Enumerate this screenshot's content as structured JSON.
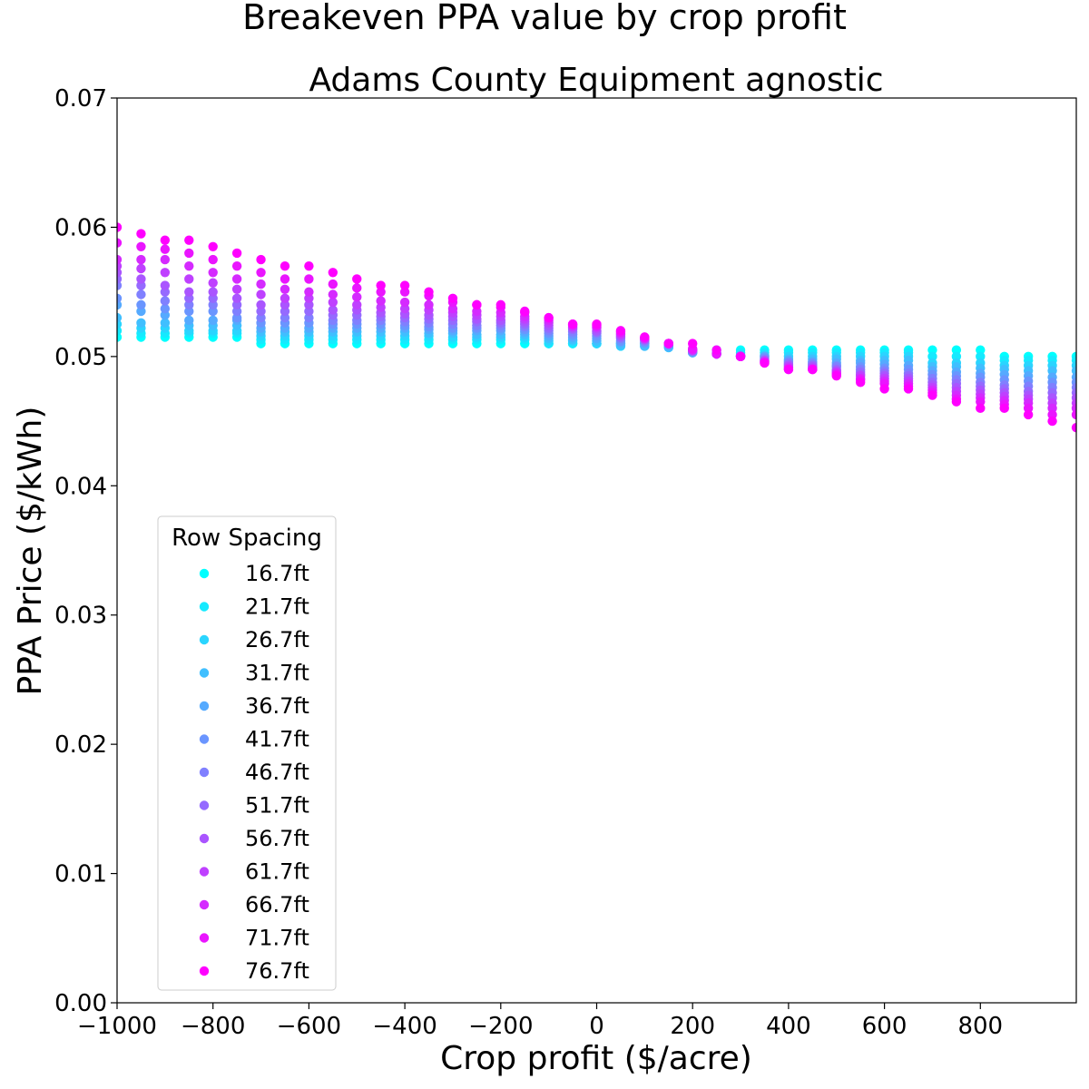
{
  "chart_data": {
    "type": "scatter",
    "suptitle": "Breakeven PPA value by crop profit",
    "title": "Adams County Equipment agnostic",
    "xlabel": "Crop profit ($/acre)",
    "ylabel": "PPA Price ($/kWh)",
    "xlim": [
      -1000,
      1000
    ],
    "ylim": [
      0,
      0.07
    ],
    "xticks": [
      -1000,
      -800,
      -600,
      -400,
      -200,
      0,
      200,
      400,
      600,
      800
    ],
    "xtick_labels": [
      "−1000",
      "−800",
      "−600",
      "−400",
      "−200",
      "0",
      "200",
      "400",
      "600",
      "800"
    ],
    "yticks": [
      0,
      0.01,
      0.02,
      0.03,
      0.04,
      0.05,
      0.06,
      0.07
    ],
    "ytick_labels": [
      "0.00",
      "0.01",
      "0.02",
      "0.03",
      "0.04",
      "0.05",
      "0.06",
      "0.07"
    ],
    "grid": false,
    "legend": {
      "title": "Row Spacing",
      "placement": "lower-left"
    },
    "x": [
      -1000,
      -950,
      -900,
      -850,
      -800,
      -750,
      -700,
      -650,
      -600,
      -550,
      -500,
      -450,
      -400,
      -350,
      -300,
      -250,
      -200,
      -150,
      -100,
      -50,
      0,
      50,
      100,
      150,
      200,
      250,
      300,
      350,
      400,
      450,
      500,
      550,
      600,
      650,
      700,
      750,
      800,
      850,
      900,
      950,
      1000
    ],
    "series": [
      {
        "name": "16.7ft",
        "color": "#00ffff",
        "values": [
          0.0515,
          0.0515,
          0.0515,
          0.0515,
          0.0515,
          0.0515,
          0.051,
          0.051,
          0.051,
          0.051,
          0.051,
          0.051,
          0.051,
          0.051,
          0.051,
          0.051,
          0.051,
          0.051,
          0.051,
          0.051,
          0.051,
          0.051,
          0.051,
          0.051,
          0.0505,
          0.0505,
          0.0505,
          0.0505,
          0.0505,
          0.0505,
          0.0505,
          0.0505,
          0.0505,
          0.0505,
          0.0505,
          0.0505,
          0.0505,
          0.05,
          0.05,
          0.05,
          0.05
        ]
      },
      {
        "name": "21.7ft",
        "color": "#15eaff",
        "values": [
          0.052,
          0.0518,
          0.0518,
          0.0518,
          0.0518,
          0.0518,
          0.0513,
          0.0513,
          0.0513,
          0.0513,
          0.0513,
          0.0513,
          0.0513,
          0.0513,
          0.0513,
          0.0513,
          0.0513,
          0.0513,
          0.051,
          0.051,
          0.051,
          0.051,
          0.051,
          0.051,
          0.0503,
          0.0503,
          0.0503,
          0.0503,
          0.0503,
          0.0503,
          0.0503,
          0.0503,
          0.0503,
          0.0503,
          0.05,
          0.05,
          0.05,
          0.0497,
          0.0497,
          0.0497,
          0.0497
        ]
      },
      {
        "name": "26.7ft",
        "color": "#2ad5ff",
        "values": [
          0.0525,
          0.0522,
          0.0522,
          0.052,
          0.052,
          0.052,
          0.0516,
          0.0516,
          0.0516,
          0.0516,
          0.0516,
          0.0516,
          0.0516,
          0.0516,
          0.0515,
          0.0515,
          0.0515,
          0.0515,
          0.0512,
          0.0512,
          0.051,
          0.0508,
          0.0508,
          0.0507,
          0.0503,
          0.0502,
          0.0501,
          0.0501,
          0.05,
          0.05,
          0.05,
          0.05,
          0.05,
          0.05,
          0.0495,
          0.0495,
          0.0495,
          0.0493,
          0.0493,
          0.0493,
          0.0493
        ]
      },
      {
        "name": "31.7ft",
        "color": "#40bfff",
        "values": [
          0.053,
          0.0526,
          0.0526,
          0.0524,
          0.0524,
          0.0524,
          0.0519,
          0.0519,
          0.0519,
          0.0519,
          0.0519,
          0.0519,
          0.0519,
          0.0518,
          0.0518,
          0.0517,
          0.0517,
          0.0517,
          0.0514,
          0.0513,
          0.0512,
          0.0509,
          0.0508,
          0.0507,
          0.0503,
          0.0502,
          0.0501,
          0.05,
          0.0498,
          0.0498,
          0.0498,
          0.0497,
          0.0497,
          0.0497,
          0.0492,
          0.0492,
          0.0491,
          0.049,
          0.0489,
          0.0489,
          0.0489
        ]
      },
      {
        "name": "36.7ft",
        "color": "#55aaff",
        "values": [
          0.054,
          0.0535,
          0.0532,
          0.0528,
          0.0528,
          0.0528,
          0.0522,
          0.0522,
          0.0522,
          0.0522,
          0.0522,
          0.0522,
          0.0522,
          0.0521,
          0.052,
          0.052,
          0.052,
          0.0519,
          0.0516,
          0.0515,
          0.0514,
          0.0511,
          0.051,
          0.0508,
          0.0503,
          0.0502,
          0.05,
          0.05,
          0.0497,
          0.0496,
          0.0495,
          0.0495,
          0.0494,
          0.0493,
          0.0489,
          0.0488,
          0.0487,
          0.0486,
          0.0485,
          0.0484,
          0.0484
        ]
      },
      {
        "name": "41.7ft",
        "color": "#6a95ff",
        "values": [
          0.0545,
          0.054,
          0.0537,
          0.0535,
          0.0535,
          0.053,
          0.0526,
          0.0526,
          0.0526,
          0.0525,
          0.0525,
          0.0525,
          0.0524,
          0.0523,
          0.0522,
          0.0522,
          0.0522,
          0.0521,
          0.0518,
          0.0517,
          0.0516,
          0.0512,
          0.0511,
          0.0509,
          0.0504,
          0.0502,
          0.05,
          0.0499,
          0.0496,
          0.0495,
          0.0493,
          0.0492,
          0.0491,
          0.049,
          0.0486,
          0.0485,
          0.0484,
          0.0482,
          0.0481,
          0.048,
          0.048
        ]
      },
      {
        "name": "46.7ft",
        "color": "#8080ff",
        "values": [
          0.0555,
          0.0548,
          0.0543,
          0.054,
          0.054,
          0.0535,
          0.053,
          0.053,
          0.053,
          0.0528,
          0.0528,
          0.0528,
          0.0527,
          0.0526,
          0.0525,
          0.0524,
          0.0524,
          0.0523,
          0.052,
          0.0519,
          0.0518,
          0.0514,
          0.0512,
          0.051,
          0.0504,
          0.0502,
          0.05,
          0.0498,
          0.0495,
          0.0494,
          0.0492,
          0.049,
          0.0489,
          0.0487,
          0.0483,
          0.0482,
          0.048,
          0.0478,
          0.0477,
          0.0476,
          0.0476
        ]
      },
      {
        "name": "51.7ft",
        "color": "#956aff",
        "values": [
          0.056,
          0.0555,
          0.055,
          0.0545,
          0.0545,
          0.054,
          0.0535,
          0.0535,
          0.0535,
          0.0532,
          0.0532,
          0.0531,
          0.053,
          0.0529,
          0.0528,
          0.0527,
          0.0526,
          0.0525,
          0.0522,
          0.0521,
          0.0519,
          0.0515,
          0.0513,
          0.051,
          0.0504,
          0.0502,
          0.05,
          0.0497,
          0.0494,
          0.0493,
          0.049,
          0.0488,
          0.0487,
          0.0485,
          0.048,
          0.0479,
          0.0477,
          0.0475,
          0.0473,
          0.0472,
          0.0472
        ]
      },
      {
        "name": "56.7ft",
        "color": "#aa55ff",
        "values": [
          0.0565,
          0.056,
          0.0555,
          0.055,
          0.055,
          0.0545,
          0.054,
          0.054,
          0.054,
          0.0536,
          0.0536,
          0.0534,
          0.0533,
          0.0532,
          0.0531,
          0.0529,
          0.0528,
          0.0527,
          0.0524,
          0.0522,
          0.052,
          0.0516,
          0.0513,
          0.051,
          0.0505,
          0.0502,
          0.05,
          0.0497,
          0.0493,
          0.0492,
          0.0489,
          0.0486,
          0.0485,
          0.0483,
          0.0478,
          0.0476,
          0.0474,
          0.0472,
          0.047,
          0.0468,
          0.0468
        ]
      },
      {
        "name": "61.7ft",
        "color": "#bf40ff",
        "values": [
          0.057,
          0.0568,
          0.0565,
          0.056,
          0.0557,
          0.0552,
          0.0548,
          0.0545,
          0.0545,
          0.0542,
          0.054,
          0.0538,
          0.0537,
          0.0536,
          0.0534,
          0.0532,
          0.0531,
          0.0529,
          0.0526,
          0.0523,
          0.0522,
          0.0517,
          0.0514,
          0.051,
          0.0505,
          0.0502,
          0.05,
          0.0496,
          0.0492,
          0.0491,
          0.0488,
          0.0485,
          0.0483,
          0.0481,
          0.0476,
          0.0473,
          0.0471,
          0.0469,
          0.0467,
          0.0464,
          0.0464
        ]
      },
      {
        "name": "66.7ft",
        "color": "#d52aff",
        "values": [
          0.0575,
          0.0575,
          0.0575,
          0.057,
          0.0565,
          0.056,
          0.0556,
          0.0552,
          0.055,
          0.0548,
          0.0546,
          0.0543,
          0.0542,
          0.054,
          0.0537,
          0.0535,
          0.0534,
          0.0531,
          0.0528,
          0.0524,
          0.0523,
          0.0518,
          0.0514,
          0.051,
          0.0505,
          0.0502,
          0.05,
          0.0496,
          0.0491,
          0.049,
          0.0487,
          0.0483,
          0.0481,
          0.0479,
          0.0474,
          0.047,
          0.0468,
          0.0466,
          0.0464,
          0.046,
          0.046
        ]
      },
      {
        "name": "71.7ft",
        "color": "#ea15ff",
        "values": [
          0.0588,
          0.0585,
          0.0583,
          0.058,
          0.0575,
          0.057,
          0.0565,
          0.056,
          0.056,
          0.0556,
          0.0553,
          0.055,
          0.055,
          0.0547,
          0.0542,
          0.054,
          0.0538,
          0.0534,
          0.053,
          0.0525,
          0.0524,
          0.0519,
          0.0515,
          0.051,
          0.0506,
          0.0502,
          0.05,
          0.0495,
          0.049,
          0.049,
          0.0486,
          0.0482,
          0.0479,
          0.0477,
          0.0472,
          0.0467,
          0.0465,
          0.0463,
          0.046,
          0.0455,
          0.0455
        ]
      },
      {
        "name": "76.7ft",
        "color": "#ff00ff",
        "values": [
          0.06,
          0.0595,
          0.059,
          0.059,
          0.0585,
          0.058,
          0.0575,
          0.057,
          0.057,
          0.0565,
          0.056,
          0.0555,
          0.0555,
          0.055,
          0.0545,
          0.054,
          0.054,
          0.0535,
          0.053,
          0.0525,
          0.0525,
          0.052,
          0.0515,
          0.051,
          0.051,
          0.0505,
          0.05,
          0.0495,
          0.049,
          0.049,
          0.0485,
          0.048,
          0.0475,
          0.0475,
          0.047,
          0.0465,
          0.046,
          0.046,
          0.0455,
          0.045,
          0.0445
        ]
      }
    ]
  }
}
